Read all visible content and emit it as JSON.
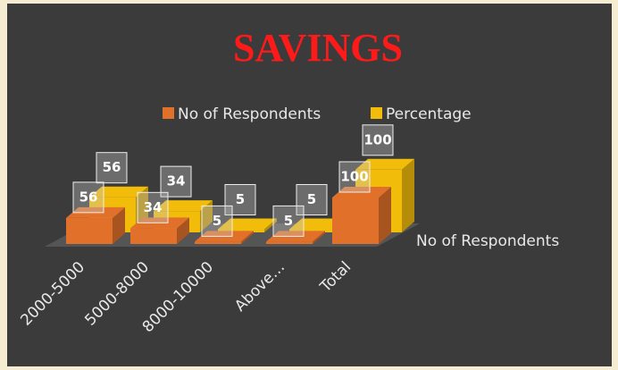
{
  "chart_data": {
    "type": "bar3d",
    "title": "SAVINGS",
    "categories": [
      "2000-5000",
      "5000-8000",
      "8000-10000",
      "Above…",
      "Total"
    ],
    "series": [
      {
        "name": "No of Respondents",
        "color": "#e0702a",
        "values": [
          56,
          34,
          5,
          5,
          100
        ]
      },
      {
        "name": "Percentage",
        "color": "#f2bc0a",
        "values": [
          56,
          34,
          5,
          5,
          100
        ]
      }
    ],
    "depth_axis_label": "No of Respondents",
    "legend": "top"
  }
}
